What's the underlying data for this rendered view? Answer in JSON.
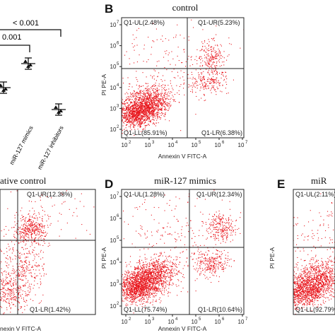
{
  "panel_a": {
    "p_values": [
      "< 0.001",
      "0.001"
    ],
    "x_labels": [
      "miR-127 mimics",
      "miR-127 inhibitors"
    ]
  },
  "axis": {
    "tick_base": "10",
    "tick_exponents": [
      "2",
      "3",
      "4",
      "5",
      "6",
      "7"
    ],
    "y_label": "PI PE-A",
    "x_label": "Annexin V FITC-A",
    "x_label_cropped": "nexin V FITC-A"
  },
  "panel_b": {
    "letter": "B",
    "title": "control",
    "quadrants": [
      "Q1-UL(2.48%)",
      "Q1-UR(5.23%)",
      "Q1-LL(85.91%)",
      "Q1-LR(6.38%)"
    ]
  },
  "panel_c": {
    "title": "ative control",
    "quadrants": [
      "Q1-UR(12.38%)",
      "Q1-LR(1.42%)"
    ]
  },
  "panel_d": {
    "letter": "D",
    "title": "miR-127 mimics",
    "quadrants": [
      "Q1-UL(1.28%)",
      "Q1-UR(12.34%)",
      "Q1-LL(75.74%)",
      "Q1-LR(10.64%)"
    ]
  },
  "panel_e": {
    "letter": "E",
    "title": "miR",
    "quadrants": [
      "Q1-UL(2.11%)",
      "Q1-LL(92.79%)"
    ]
  }
}
